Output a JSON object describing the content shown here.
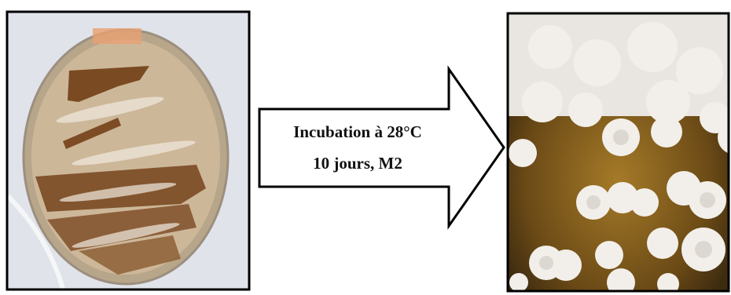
{
  "arrow": {
    "lines": [
      "Incubation à 28°C",
      "10 jours, M2"
    ]
  }
}
